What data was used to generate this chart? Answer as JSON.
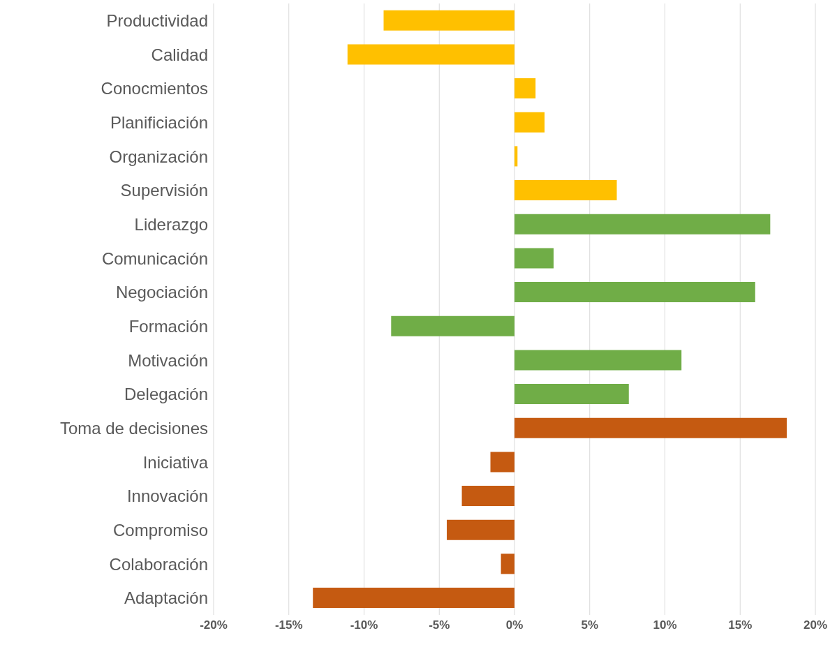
{
  "chart_data": {
    "type": "bar",
    "orientation": "horizontal",
    "categories": [
      "Productividad",
      "Calidad",
      "Conocmientos",
      "Planificiación",
      "Organización",
      "Supervisión",
      "Liderazgo",
      "Comunicación",
      "Negociación",
      "Formación",
      "Motivación",
      "Delegación",
      "Toma de decisiones",
      "Iniciativa",
      "Innovación",
      "Compromiso",
      "Colaboración",
      "Adaptación"
    ],
    "values": [
      -8.7,
      -11.1,
      1.4,
      2.0,
      0.2,
      6.8,
      17.0,
      2.6,
      16.0,
      -8.2,
      11.1,
      7.6,
      18.1,
      -1.6,
      -3.5,
      -4.5,
      -0.9,
      -13.4
    ],
    "colors": [
      "#ffc000",
      "#ffc000",
      "#ffc000",
      "#ffc000",
      "#ffc000",
      "#ffc000",
      "#70ad47",
      "#70ad47",
      "#70ad47",
      "#70ad47",
      "#70ad47",
      "#70ad47",
      "#c55a11",
      "#c55a11",
      "#c55a11",
      "#c55a11",
      "#c55a11",
      "#c55a11"
    ],
    "xlim": [
      -20,
      20
    ],
    "xticks": [
      {
        "value": -20,
        "label": "-20%"
      },
      {
        "value": -15,
        "label": "-15%"
      },
      {
        "value": -10,
        "label": "-10%"
      },
      {
        "value": -5,
        "label": "-5%"
      },
      {
        "value": 0,
        "label": "0%"
      },
      {
        "value": 5,
        "label": "5%"
      },
      {
        "value": 10,
        "label": "10%"
      },
      {
        "value": 15,
        "label": "15%"
      },
      {
        "value": 20,
        "label": "20%"
      }
    ],
    "grid": "x",
    "legend": false
  }
}
